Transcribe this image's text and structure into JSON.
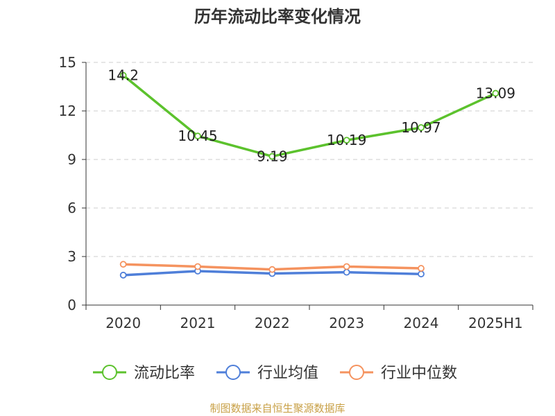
{
  "title": "历年流动比率变化情况",
  "source": "制图数据来自恒生聚源数据库",
  "chart_data": {
    "type": "line",
    "categories": [
      "2020",
      "2021",
      "2022",
      "2023",
      "2024",
      "2025H1"
    ],
    "ylim": [
      0,
      15
    ],
    "yticks": [
      0,
      3,
      6,
      9,
      12,
      15
    ],
    "grid": true,
    "legend_position": "bottom",
    "series": [
      {
        "name": "流动比率",
        "color": "#5cc22d",
        "values": [
          14.2,
          10.45,
          9.19,
          10.19,
          10.97,
          13.09
        ],
        "labels": [
          "14.2",
          "10.45",
          "9.19",
          "10.19",
          "10.97",
          "13.09"
        ],
        "show_labels": true
      },
      {
        "name": "行业均值",
        "color": "#4f7fd9",
        "values": [
          1.85,
          2.1,
          1.95,
          2.03,
          1.92,
          null
        ],
        "show_labels": false
      },
      {
        "name": "行业中位数",
        "color": "#f5935f",
        "values": [
          2.52,
          2.38,
          2.2,
          2.38,
          2.27,
          null
        ],
        "show_labels": false
      }
    ]
  }
}
